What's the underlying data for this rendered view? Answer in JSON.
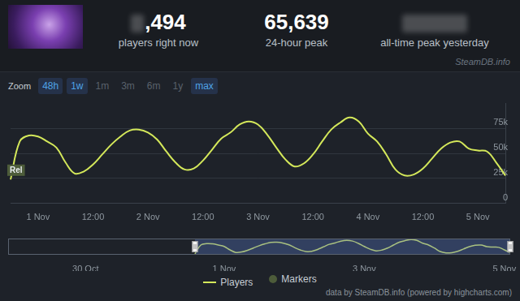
{
  "header": {
    "stats": [
      {
        "value": ",494",
        "label": "players right now"
      },
      {
        "value": "65,639",
        "label": "24-hour peak"
      },
      {
        "label": "all-time peak yesterday"
      }
    ],
    "credit": "SteamDB.info"
  },
  "zoom": {
    "label": "Zoom",
    "buttons": [
      {
        "text": "48h",
        "active": true
      },
      {
        "text": "1w",
        "active": true
      },
      {
        "text": "1m",
        "active": false
      },
      {
        "text": "3m",
        "active": false
      },
      {
        "text": "6m",
        "active": false
      },
      {
        "text": "1y",
        "active": false
      },
      {
        "text": "max",
        "active": true
      }
    ]
  },
  "chart_data": [
    {
      "type": "line",
      "categories": [
        null,
        null,
        null,
        "1 Nov",
        null,
        null,
        null,
        null,
        null,
        "12:00",
        null,
        null,
        null,
        null,
        null,
        "2 Nov",
        null,
        null,
        null,
        null,
        null,
        "12:00",
        null,
        null,
        null,
        null,
        null,
        "3 Nov",
        null,
        null,
        null,
        null,
        null,
        "12:00",
        null,
        null,
        null,
        null,
        null,
        "4 Nov",
        null,
        null,
        null,
        null,
        null,
        "12:00",
        null,
        null,
        null,
        null,
        null,
        "5 Nov",
        null,
        null,
        null
      ],
      "series": [
        {
          "name": "Players",
          "color": "#d4e85a",
          "values": [
            24000,
            62000,
            68000,
            67000,
            62000,
            56000,
            41000,
            30000,
            32000,
            39000,
            49000,
            59000,
            67000,
            73000,
            74000,
            71000,
            64000,
            52000,
            41000,
            34000,
            35000,
            43000,
            54000,
            65000,
            71000,
            79000,
            82000,
            79000,
            69000,
            56000,
            44000,
            37000,
            40000,
            49000,
            62000,
            74000,
            81000,
            86000,
            82000,
            70000,
            62000,
            49000,
            34000,
            28000,
            29000,
            35000,
            45000,
            55000,
            61000,
            62000,
            55000,
            53000,
            52000,
            41000,
            28000
          ]
        }
      ],
      "markers": {
        "name": "Markers",
        "color": "#4d5c3a",
        "items": [
          {
            "index": 0,
            "text": "Rel"
          }
        ]
      },
      "ylim": [
        0,
        100000
      ],
      "yticks": [
        0,
        {
          "value": 25000,
          "label": "25k"
        },
        {
          "value": 50000,
          "label": "50k"
        },
        {
          "value": 75000,
          "label": "75k"
        }
      ],
      "grid": true,
      "legend": "bottom"
    },
    {
      "type": "line",
      "categories": [
        null,
        null,
        null,
        null,
        null,
        null,
        null,
        null,
        null,
        null,
        null,
        "30 Oct",
        null,
        null,
        null,
        null,
        null,
        null,
        null,
        null,
        null,
        null,
        null,
        null,
        null,
        null,
        null,
        null,
        null,
        null,
        null,
        null,
        null,
        null,
        null,
        "1 Nov",
        null,
        null,
        null,
        null,
        null,
        null,
        null,
        null,
        null,
        null,
        null,
        null,
        null,
        null,
        null,
        null,
        null,
        null,
        null,
        null,
        null,
        null,
        null,
        "3 Nov",
        null,
        null,
        null,
        null,
        null,
        null,
        null,
        null,
        null,
        null,
        null,
        null,
        null,
        null,
        null,
        null,
        null,
        null,
        null,
        null,
        null,
        null,
        null,
        "5 Nov",
        null,
        null,
        null
      ],
      "series": [
        {
          "color": "#d4e85a",
          "values": [
            null,
            null,
            null,
            null,
            null,
            null,
            null,
            null,
            null,
            null,
            null,
            null,
            null,
            null,
            null,
            null,
            null,
            null,
            null,
            null,
            null,
            null,
            null,
            null,
            null,
            null,
            null,
            null,
            null,
            null,
            null,
            null,
            24000,
            62000,
            68000,
            67000,
            62000,
            56000,
            41000,
            30000,
            32000,
            39000,
            49000,
            59000,
            67000,
            73000,
            74000,
            71000,
            64000,
            52000,
            41000,
            34000,
            35000,
            43000,
            54000,
            65000,
            71000,
            79000,
            82000,
            79000,
            69000,
            56000,
            44000,
            37000,
            40000,
            49000,
            62000,
            74000,
            81000,
            86000,
            82000,
            70000,
            62000,
            49000,
            34000,
            28000,
            29000,
            35000,
            45000,
            55000,
            61000,
            62000,
            55000,
            53000,
            52000,
            41000,
            28000
          ]
        }
      ],
      "ylim": [
        20000,
        90000
      ],
      "grid": false,
      "tick_labels": "x"
    }
  ],
  "footer": "data by SteamDB.info (powered by highcharts.com)"
}
